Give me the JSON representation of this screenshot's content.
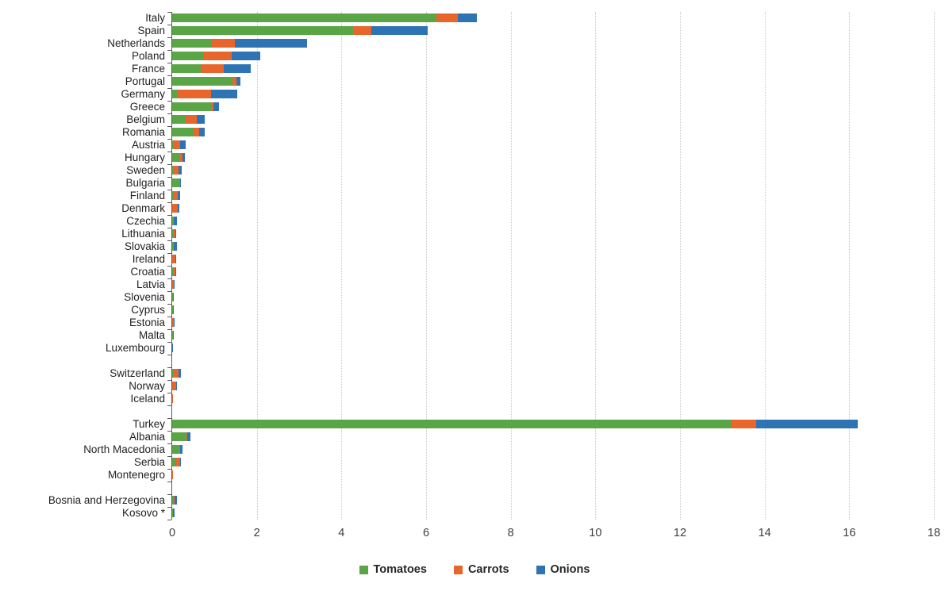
{
  "chart_data": {
    "type": "bar",
    "orientation": "horizontal",
    "stacked": true,
    "title": "",
    "xlabel": "",
    "ylabel": "",
    "xlim": [
      0,
      18
    ],
    "x_ticks": [
      0,
      2,
      4,
      6,
      8,
      10,
      12,
      14,
      16,
      18
    ],
    "grid": "vertical-dotted",
    "legend_position": "bottom",
    "categories": [
      "Italy",
      "Spain",
      "Netherlands",
      "Poland",
      "France",
      "Portugal",
      "Germany",
      "Greece",
      "Belgium",
      "Romania",
      "Austria",
      "Hungary",
      "Sweden",
      "Bulgaria",
      "Finland",
      "Denmark",
      "Czechia",
      "Lithuania",
      "Slovakia",
      "Ireland",
      "Croatia",
      "Latvia",
      "Slovenia",
      "Cyprus",
      "Estonia",
      "Malta",
      "Luxembourg",
      "Switzerland",
      "Norway",
      "Iceland",
      "Turkey",
      "Albania",
      "North Macedonia",
      "Serbia",
      "Montenegro",
      "Bosnia and Herzegovina",
      "Kosovo *"
    ],
    "gaps_after": [
      "Luxembourg",
      "Iceland",
      "Montenegro"
    ],
    "series": [
      {
        "name": "Tomatoes",
        "color": "#5aa646",
        "values": [
          6.25,
          4.3,
          0.93,
          0.73,
          0.68,
          1.42,
          0.13,
          0.93,
          0.31,
          0.5,
          0.03,
          0.19,
          0.01,
          0.17,
          0.01,
          0.0,
          0.02,
          0.01,
          0.01,
          0.0,
          0.04,
          0.0,
          0.01,
          0.01,
          0.0,
          0.01,
          0.005,
          0.01,
          0.0,
          0.0,
          13.2,
          0.33,
          0.16,
          0.1,
          0.005,
          0.03,
          0.01
        ]
      },
      {
        "name": "Carrots",
        "color": "#e8662c",
        "values": [
          0.5,
          0.4,
          0.55,
          0.68,
          0.53,
          0.1,
          0.78,
          0.04,
          0.28,
          0.14,
          0.15,
          0.05,
          0.14,
          0.01,
          0.13,
          0.13,
          0.02,
          0.07,
          0.02,
          0.08,
          0.03,
          0.04,
          0.01,
          0.005,
          0.03,
          0.0,
          0.0,
          0.14,
          0.1,
          0.005,
          0.6,
          0.02,
          0.02,
          0.08,
          0.005,
          0.02,
          0.01
        ]
      },
      {
        "name": "Onions",
        "color": "#2e74b5",
        "values": [
          0.45,
          1.33,
          1.7,
          0.67,
          0.64,
          0.09,
          0.62,
          0.14,
          0.17,
          0.13,
          0.14,
          0.06,
          0.08,
          0.02,
          0.04,
          0.04,
          0.07,
          0.02,
          0.08,
          0.02,
          0.01,
          0.01,
          0.005,
          0.01,
          0.01,
          0.005,
          0.005,
          0.06,
          0.01,
          0.0,
          2.4,
          0.08,
          0.06,
          0.02,
          0.0,
          0.07,
          0.04
        ]
      }
    ]
  },
  "legend": {
    "items": [
      {
        "label": "Tomatoes",
        "color": "#5aa646"
      },
      {
        "label": "Carrots",
        "color": "#e8662c"
      },
      {
        "label": "Onions",
        "color": "#2e74b5"
      }
    ]
  },
  "axis": {
    "tick_labels": [
      "0",
      "2",
      "4",
      "6",
      "8",
      "10",
      "12",
      "14",
      "16",
      "18"
    ]
  }
}
